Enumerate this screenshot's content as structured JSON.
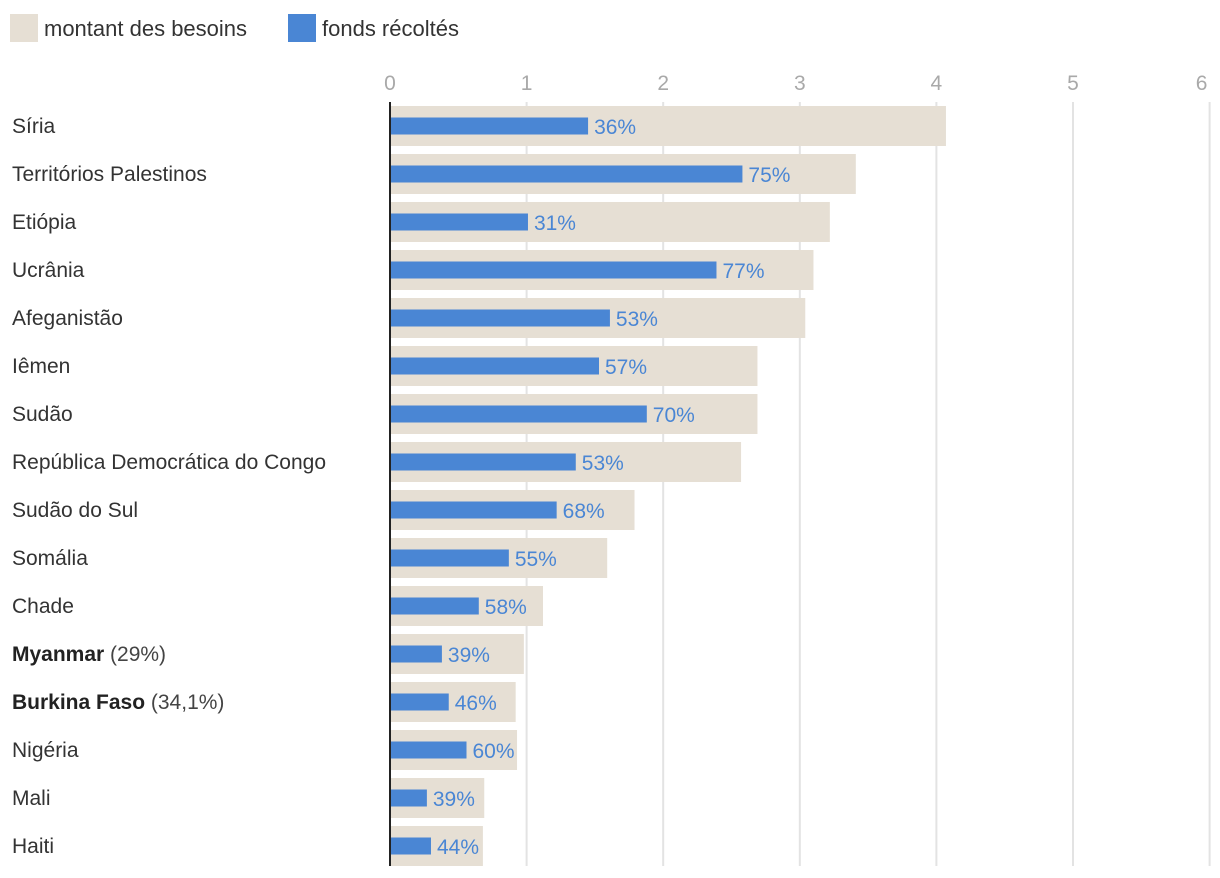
{
  "chart_data": {
    "type": "bar",
    "orientation": "horizontal",
    "legend": [
      {
        "label": "montant des besoins",
        "color": "#e6dfd4"
      },
      {
        "label": "fonds récoltés",
        "color": "#4a86d4"
      }
    ],
    "xlim": [
      0,
      6
    ],
    "x_ticks": [
      "0",
      "1",
      "2",
      "3",
      "4",
      "5",
      "6"
    ],
    "x_tick_values": [
      0,
      1,
      2,
      3,
      4,
      5,
      6
    ],
    "grid": true,
    "series": [
      {
        "name": "montant des besoins",
        "values": [
          4.07,
          3.41,
          3.22,
          3.1,
          3.04,
          2.69,
          2.69,
          2.57,
          1.79,
          1.59,
          1.12,
          0.98,
          0.92,
          0.93,
          0.69,
          0.68
        ]
      },
      {
        "name": "fonds récoltés",
        "values": [
          1.45,
          2.58,
          1.01,
          2.39,
          1.61,
          1.53,
          1.88,
          1.36,
          1.22,
          0.87,
          0.65,
          0.38,
          0.43,
          0.56,
          0.27,
          0.3
        ]
      }
    ],
    "categories": [
      {
        "name": "Síria",
        "note": ""
      },
      {
        "name": "Territórios Palestinos",
        "note": ""
      },
      {
        "name": "Etiópia",
        "note": ""
      },
      {
        "name": "Ucrânia",
        "note": ""
      },
      {
        "name": "Afeganistão",
        "note": ""
      },
      {
        "name": "Iêmen",
        "note": ""
      },
      {
        "name": "Sudão",
        "note": ""
      },
      {
        "name": "República Democrática do Congo",
        "note": ""
      },
      {
        "name": "Sudão do Sul",
        "note": ""
      },
      {
        "name": "Somália",
        "note": ""
      },
      {
        "name": "Chade",
        "note": ""
      },
      {
        "name": "Myanmar",
        "note": "(29%)",
        "bold": true
      },
      {
        "name": "Burkina Faso",
        "note": "(34,1%)",
        "bold": true
      },
      {
        "name": "Nigéria",
        "note": ""
      },
      {
        "name": "Mali",
        "note": ""
      },
      {
        "name": "Haiti",
        "note": ""
      }
    ],
    "percent_labels": [
      "36%",
      "75%",
      "31%",
      "77%",
      "53%",
      "57%",
      "70%",
      "53%",
      "68%",
      "55%",
      "58%",
      "39%",
      "46%",
      "60%",
      "39%",
      "44%"
    ]
  }
}
